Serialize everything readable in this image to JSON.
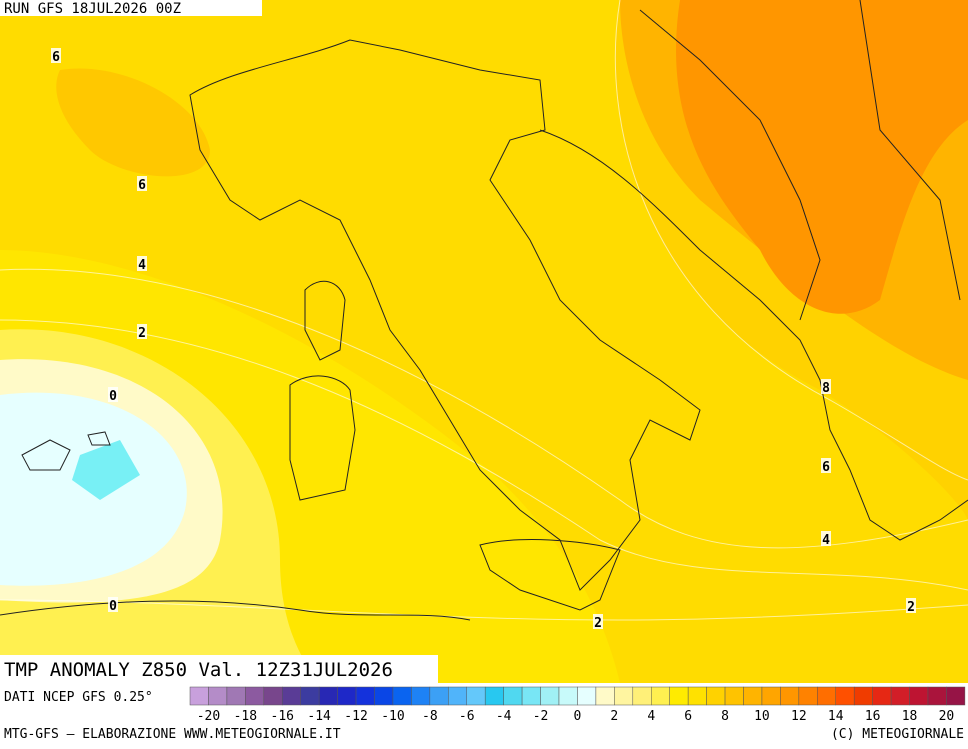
{
  "header": {
    "run": "RUN GFS 18JUL2026 00Z"
  },
  "map": {
    "contour_labels": [
      "6",
      "6",
      "4",
      "2",
      "0",
      "0",
      "8",
      "6",
      "4",
      "2",
      "2"
    ]
  },
  "title": "TMP ANOMALY Z850 Val. 12Z31JUL2026",
  "source": "DATI NCEP GFS 0.25°",
  "legend": {
    "colors": [
      "#c8a0dc",
      "#b48cc8",
      "#a078b4",
      "#8c5aa0",
      "#78468c",
      "#5a3c96",
      "#3c3ca0",
      "#2828b4",
      "#1e28c8",
      "#1432dc",
      "#0a46e6",
      "#0a64f0",
      "#1e82f5",
      "#3ca0f5",
      "#50b4fa",
      "#64c8fa",
      "#28c8f0",
      "#50d8f0",
      "#78e6f5",
      "#a0f0f5",
      "#c8fafa",
      "#e6ffff",
      "#fffac8",
      "#fff5a0",
      "#fff078",
      "#fff050",
      "#ffeb00",
      "#ffe100",
      "#ffd200",
      "#ffc300",
      "#ffb400",
      "#ffa500",
      "#ff9600",
      "#ff8200",
      "#ff6e00",
      "#ff5000",
      "#f03c00",
      "#e62814",
      "#d21e28",
      "#be1432",
      "#aa143c",
      "#961446"
    ],
    "ticks": [
      -20,
      -18,
      -16,
      -14,
      -12,
      -10,
      -8,
      -6,
      -4,
      -2,
      0,
      2,
      4,
      6,
      8,
      10,
      12,
      14,
      16,
      18,
      20
    ]
  },
  "footer": {
    "left": "MTG-GFS – ELABORAZIONE WWW.METEOGIORNALE.IT",
    "right": "(C) METEOGIORNALE"
  }
}
